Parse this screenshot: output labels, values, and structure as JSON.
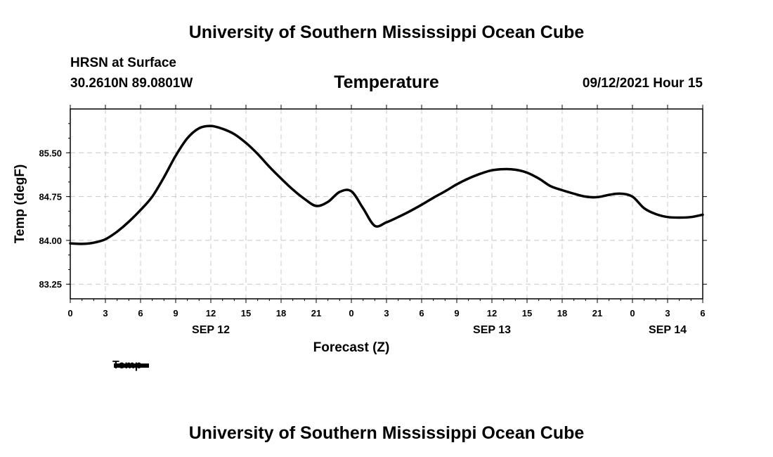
{
  "header": {
    "top_title": "University of Southern Mississippi Ocean Cube",
    "bottom_title": "University of Southern Mississippi Ocean Cube",
    "station": "HRSN at Surface",
    "coords": "30.2610N  89.0801W",
    "date": "09/12/2021 Hour 15"
  },
  "chart_data": {
    "type": "line",
    "title": "Temperature",
    "xlabel": "Forecast (Z)",
    "ylabel": "Temp (degF)",
    "xlim": [
      0,
      54
    ],
    "ylim": [
      83.0,
      86.25
    ],
    "yticks": [
      83.25,
      84.0,
      84.75,
      85.5
    ],
    "ytick_labels": [
      "83.25",
      "84.00",
      "84.75",
      "85.50"
    ],
    "xticks": [
      0,
      3,
      6,
      9,
      12,
      15,
      18,
      21,
      24,
      27,
      30,
      33,
      36,
      39,
      42,
      45,
      48,
      51,
      54
    ],
    "xtick_labels": [
      "0",
      "3",
      "6",
      "9",
      "12",
      "15",
      "18",
      "21",
      "0",
      "3",
      "6",
      "9",
      "12",
      "15",
      "18",
      "21",
      "0",
      "3",
      "6"
    ],
    "day_labels": [
      {
        "x": 12,
        "label": "SEP 12"
      },
      {
        "x": 36,
        "label": "SEP 13"
      },
      {
        "x": 51,
        "label": "SEP 14"
      }
    ],
    "grid": true,
    "legend": {
      "label": "Temp",
      "placement": "bottom-left"
    },
    "series": [
      {
        "name": "Temp",
        "x": [
          0,
          1,
          2,
          3,
          4,
          5,
          6,
          7,
          8,
          9,
          10,
          11,
          12,
          13,
          14,
          15,
          16,
          17,
          18,
          19,
          20,
          21,
          22,
          23,
          24,
          25,
          26,
          27,
          28,
          29,
          30,
          31,
          32,
          33,
          34,
          35,
          36,
          37,
          38,
          39,
          40,
          41,
          42,
          43,
          44,
          45,
          46,
          47,
          48,
          49,
          50,
          51,
          52,
          53,
          54
        ],
        "values": [
          83.95,
          83.94,
          83.96,
          84.02,
          84.15,
          84.32,
          84.52,
          84.75,
          85.08,
          85.45,
          85.75,
          85.92,
          85.96,
          85.91,
          85.82,
          85.67,
          85.48,
          85.26,
          85.06,
          84.87,
          84.71,
          84.59,
          84.66,
          84.83,
          84.84,
          84.55,
          84.25,
          84.31,
          84.4,
          84.5,
          84.61,
          84.73,
          84.84,
          84.96,
          85.06,
          85.14,
          85.2,
          85.22,
          85.21,
          85.16,
          85.06,
          84.93,
          84.86,
          84.8,
          84.75,
          84.74,
          84.78,
          84.8,
          84.75,
          84.55,
          84.45,
          84.4,
          84.39,
          84.4,
          84.44
        ]
      }
    ]
  }
}
